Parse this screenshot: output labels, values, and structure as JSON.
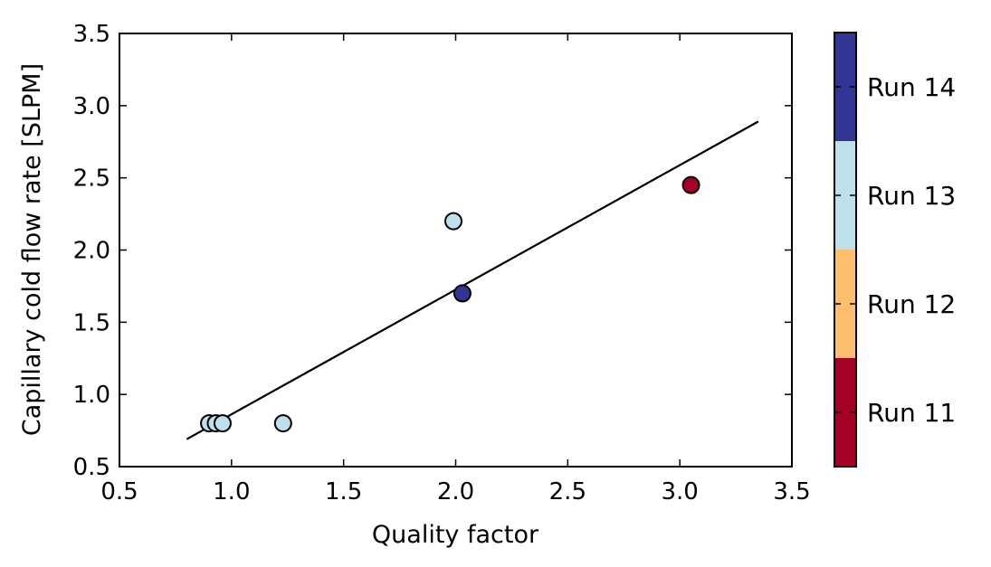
{
  "chart_data": {
    "type": "scatter",
    "xlabel": "Quality factor",
    "ylabel": "Capillary cold flow rate [SLPM]",
    "xlim": [
      0.5,
      3.5
    ],
    "ylim": [
      0.5,
      3.5
    ],
    "x_ticks": [
      "0.5",
      "1.0",
      "1.5",
      "2.0",
      "2.5",
      "3.0",
      "3.5"
    ],
    "y_ticks": [
      "0.5",
      "1.0",
      "1.5",
      "2.0",
      "2.5",
      "3.0",
      "3.5"
    ],
    "grid": false,
    "points": [
      {
        "x": 0.9,
        "y": 0.8,
        "run": "Run 13"
      },
      {
        "x": 0.93,
        "y": 0.8,
        "run": "Run 13"
      },
      {
        "x": 0.96,
        "y": 0.8,
        "run": "Run 13"
      },
      {
        "x": 1.23,
        "y": 0.8,
        "run": "Run 13"
      },
      {
        "x": 1.99,
        "y": 2.2,
        "run": "Run 13"
      },
      {
        "x": 2.03,
        "y": 1.7,
        "run": "Run 14"
      },
      {
        "x": 3.05,
        "y": 2.45,
        "run": "Run 11"
      }
    ],
    "fit_line": {
      "x": [
        0.8,
        3.35
      ],
      "y": [
        0.69,
        2.89
      ]
    },
    "colorbar": {
      "position": "right",
      "labels": [
        "Run 11",
        "Run 12",
        "Run 13",
        "Run 14"
      ],
      "colors": [
        "#a50026",
        "#fdbf6f",
        "#bde0ea",
        "#313695"
      ]
    }
  }
}
